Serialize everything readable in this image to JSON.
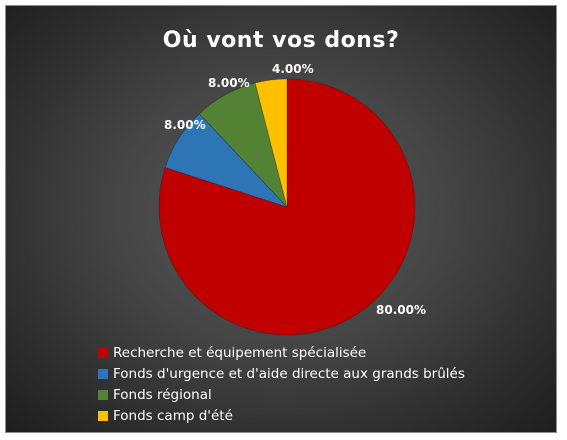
{
  "chart_data": {
    "type": "pie",
    "title": "Où vont vos dons?",
    "slices": [
      {
        "label": "Recherche et équipement spécialisée",
        "value": 80,
        "value_label": "80.00%",
        "color": "#c00000"
      },
      {
        "label": "Fonds d'urgence et d'aide directe aux grands brûlés",
        "value": 8,
        "value_label": "8.00%",
        "color": "#2e75b6"
      },
      {
        "label": "Fonds régional",
        "value": 8,
        "value_label": "8.00%",
        "color": "#548235"
      },
      {
        "label": "Fonds camp d'été",
        "value": 4,
        "value_label": "4.00%",
        "color": "#ffc000"
      }
    ],
    "start": "12 o'clock",
    "direction": "clockwise",
    "legend_position": "bottom-left"
  }
}
